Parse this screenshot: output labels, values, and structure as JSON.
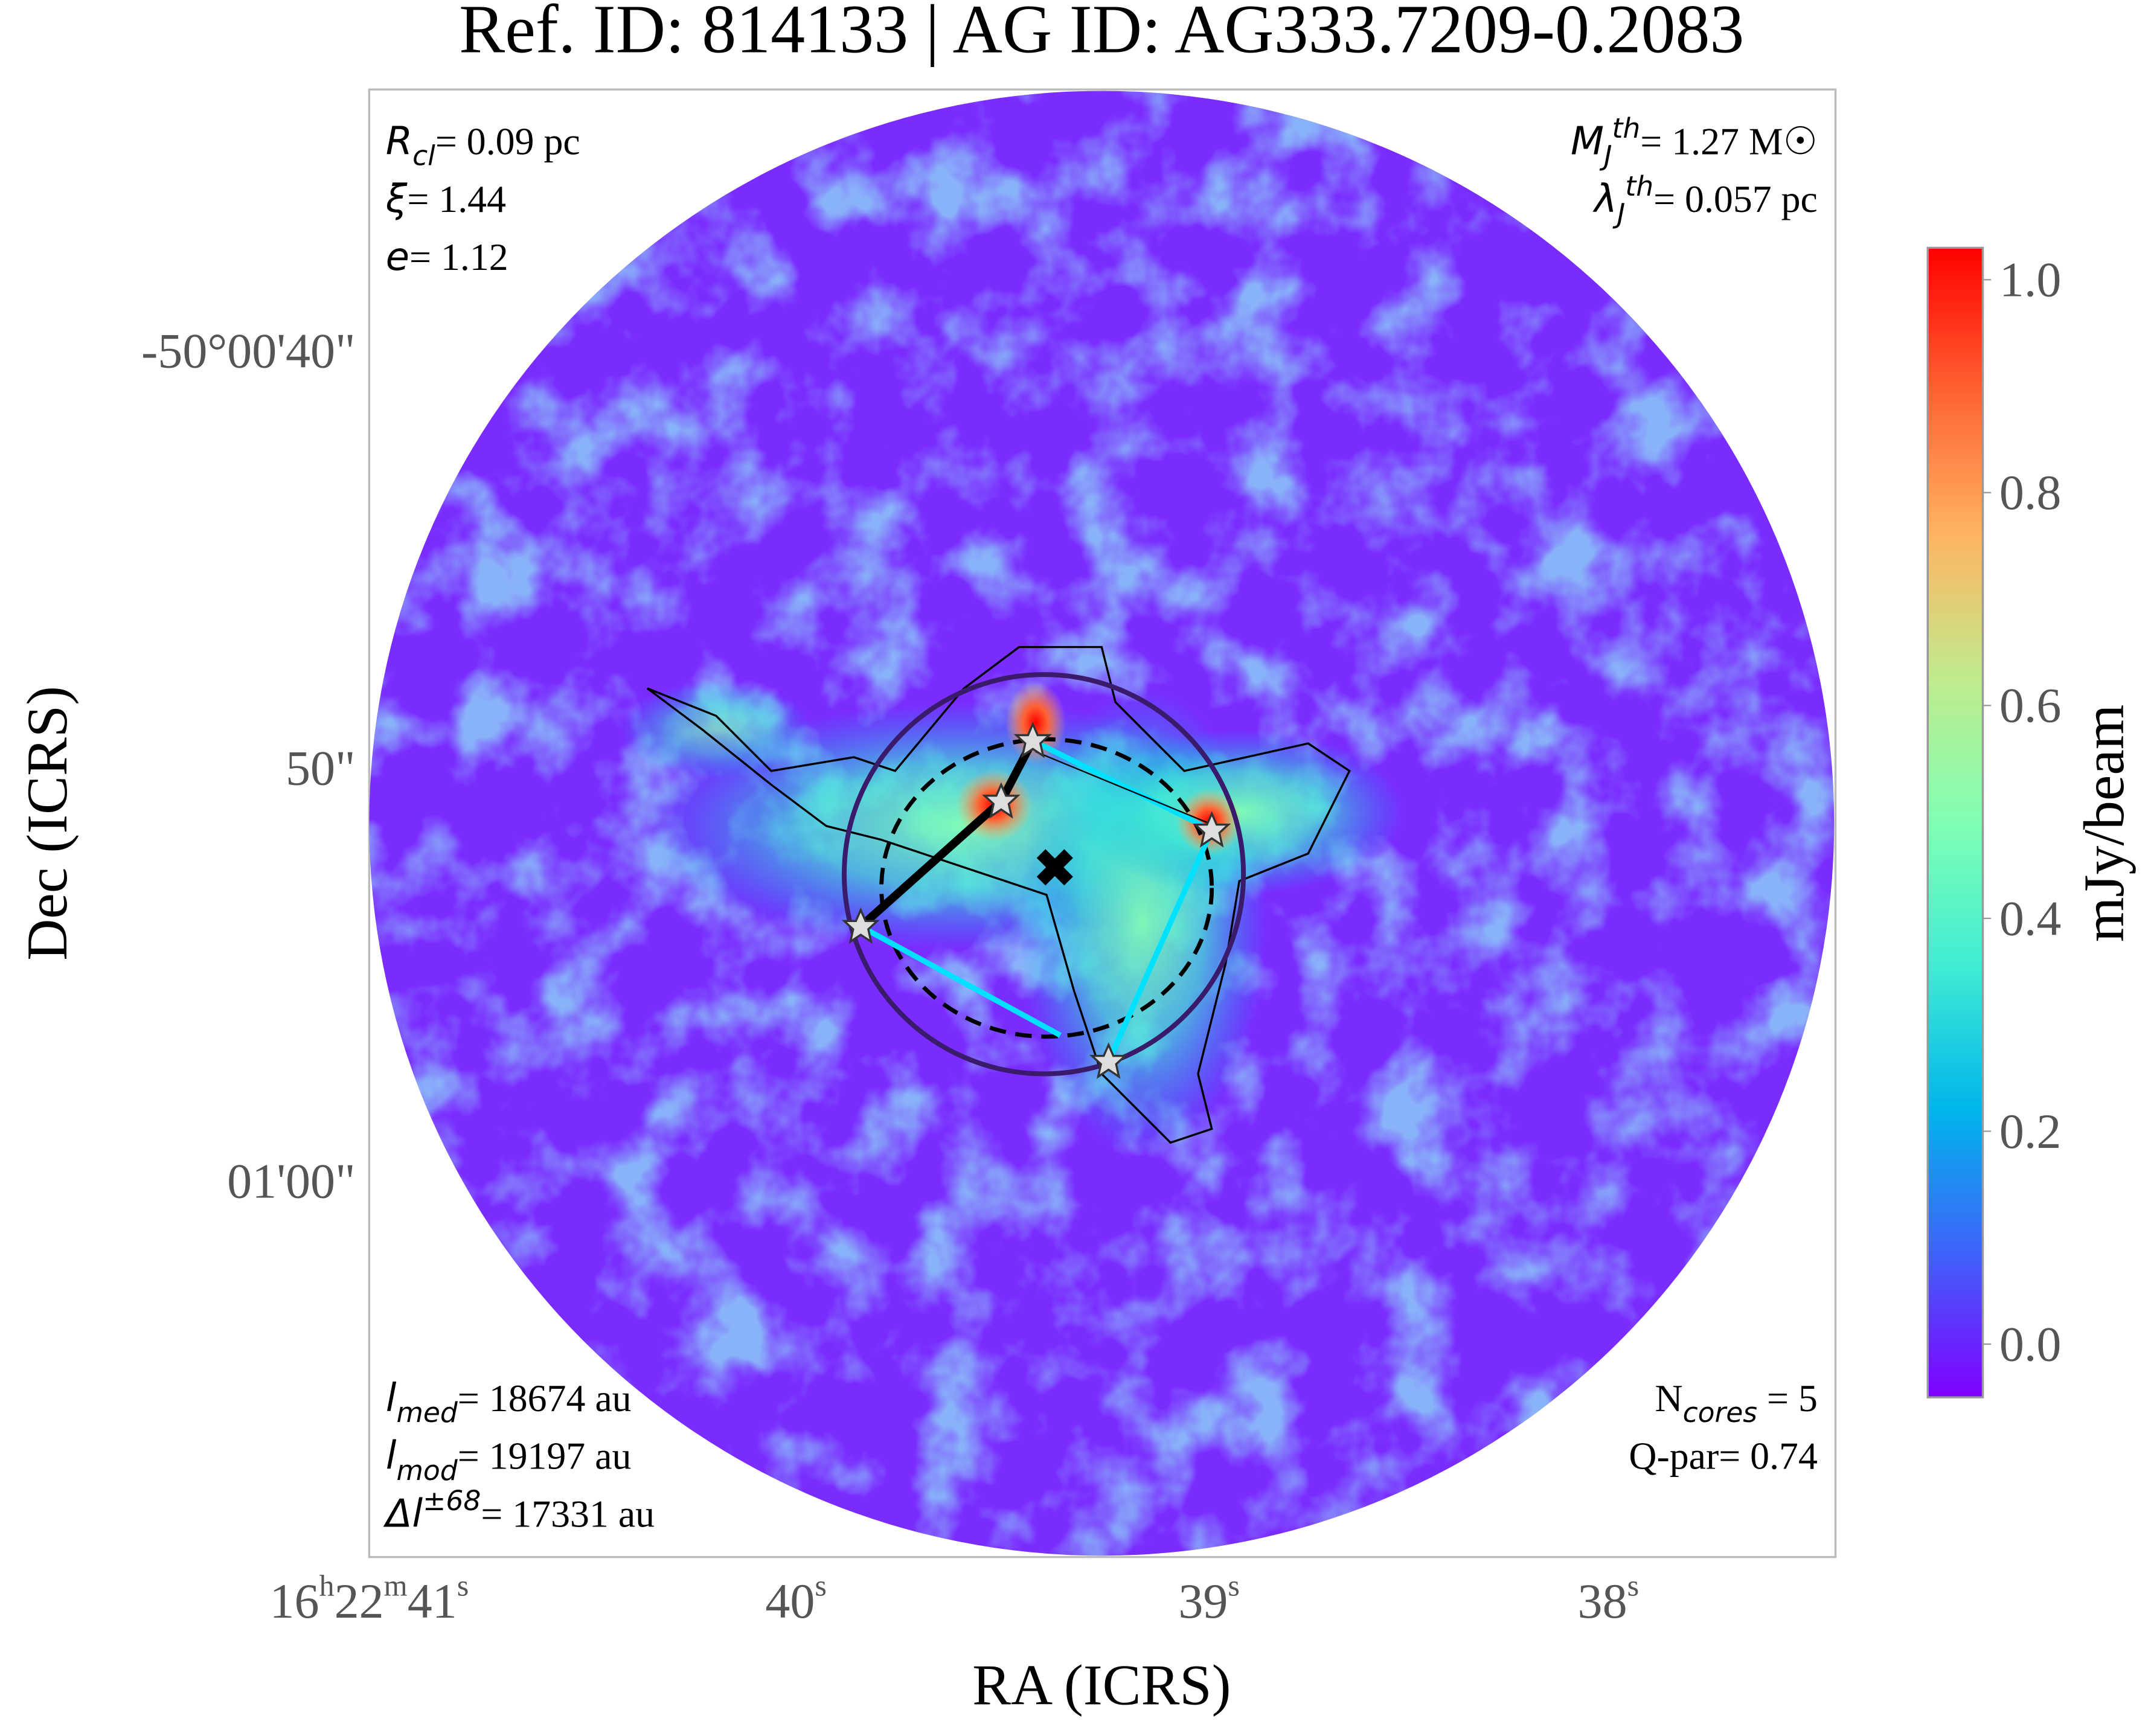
{
  "chart_data": {
    "type": "image",
    "title": "Ref. ID: 814133 | AG ID: AG333.7209-0.2083",
    "xlabel": "RA (ICRS)",
    "ylabel": "Dec (ICRS)",
    "xtick_labels": [
      [
        [
          "16",
          "h"
        ],
        [
          "22",
          "m"
        ],
        [
          "41",
          "s"
        ]
      ],
      [
        [
          "40",
          "s"
        ]
      ],
      [
        [
          "39",
          "s"
        ]
      ],
      [
        [
          "38",
          "s"
        ]
      ]
    ],
    "ytick_labels": [
      "-50°00'40\"",
      "50\"",
      "01'00\""
    ],
    "colorbar": {
      "label": "mJy/beam",
      "lim": [
        -0.05,
        1.03
      ],
      "ticks": [
        {
          "value": 0,
          "label": "0.0"
        },
        {
          "value": 0.2,
          "label": "0.2"
        },
        {
          "value": 0.4,
          "label": "0.4"
        },
        {
          "value": 0.6,
          "label": "0.6"
        },
        {
          "value": 0.8,
          "label": "0.8"
        },
        {
          "value": 1,
          "label": "1.0"
        }
      ],
      "colormap": [
        "#8000ff",
        "#4062fa",
        "#00b5eb",
        "#40ecd4",
        "#80ffb4",
        "#c0eb8d",
        "#ffb462",
        "#ff6232",
        "#ff0000"
      ]
    },
    "annotations": [
      {
        "corner": "top-left",
        "lines": [
          [
            {
              "t": "R",
              "style": "italic"
            },
            {
              "t": "cl",
              "style": "sub"
            },
            {
              "t": "= 0.09 pc",
              "style": "normal"
            }
          ],
          [
            {
              "t": "ξ",
              "style": "italic"
            },
            {
              "t": "= 1.44",
              "style": "normal"
            }
          ],
          [
            {
              "t": "e",
              "style": "italic"
            },
            {
              "t": "= 1.12",
              "style": "normal"
            }
          ]
        ]
      },
      {
        "corner": "top-right",
        "lines": [
          [
            {
              "t": "M",
              "style": "italic"
            },
            {
              "t": "J",
              "style": "sub"
            },
            {
              "t": "th",
              "style": "sup"
            },
            {
              "t": "= 1.27 M☉",
              "style": "normal"
            }
          ],
          [
            {
              "t": "λ",
              "style": "italic"
            },
            {
              "t": "J",
              "style": "sub"
            },
            {
              "t": "th",
              "style": "sup"
            },
            {
              "t": "= 0.057 pc",
              "style": "normal"
            }
          ]
        ]
      },
      {
        "corner": "bottom-left",
        "lines": [
          [
            {
              "t": "l",
              "style": "italic"
            },
            {
              "t": "med",
              "style": "sub"
            },
            {
              "t": "= 18674 au",
              "style": "normal"
            }
          ],
          [
            {
              "t": "l",
              "style": "italic"
            },
            {
              "t": "mod",
              "style": "sub"
            },
            {
              "t": "= 19197 au",
              "style": "normal"
            }
          ],
          [
            {
              "t": "Δl",
              "style": "italic"
            },
            {
              "t": "±68",
              "style": "sup"
            },
            {
              "t": "= 17331 au",
              "style": "normal"
            }
          ]
        ]
      },
      {
        "corner": "bottom-right",
        "lines": [
          [
            {
              "t": "N",
              "style": "normal"
            },
            {
              "t": "cores",
              "style": "sub"
            },
            {
              "t": " = 5",
              "style": "normal"
            }
          ],
          [
            {
              "t": "Q-par= 0.74",
              "style": "normal"
            }
          ]
        ]
      }
    ]
  }
}
